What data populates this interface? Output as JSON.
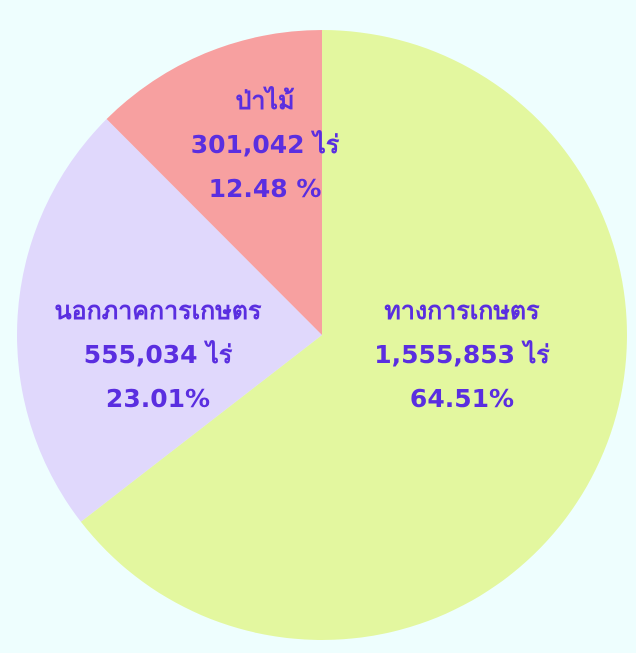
{
  "chart_data": {
    "type": "pie",
    "categories": [
      "ทางการเกษตร",
      "นอกภาคการเกษตร",
      "ป่าไม้"
    ],
    "values": [
      64.51,
      23.01,
      12.48
    ],
    "value_labels": [
      "64.51%",
      "23.01%",
      "12.48 %"
    ],
    "area_labels": [
      "1,555,853 ไร่",
      "555,034 ไร่",
      "301,042 ไร่"
    ],
    "colors": [
      "#e3f79f",
      "#e0d8fc",
      "#f7a0a0"
    ]
  }
}
